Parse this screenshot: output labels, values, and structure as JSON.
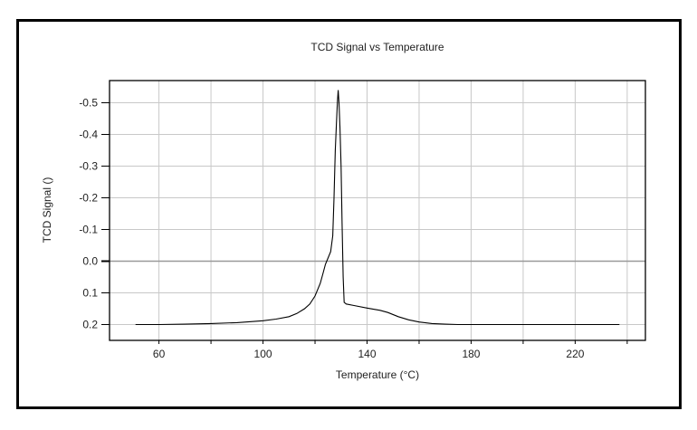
{
  "chart_data": {
    "type": "line",
    "title": "TCD Signal vs Temperature",
    "xlabel": "Temperature (°C)",
    "ylabel": "TCD Signal ()",
    "xlim": [
      41,
      247
    ],
    "ylim": [
      0.25,
      -0.57
    ],
    "y_inverted": true,
    "grid": true,
    "x_ticks": [
      60,
      100,
      140,
      180,
      220
    ],
    "x_tick_labels": [
      "60",
      "100",
      "140",
      "180",
      "220"
    ],
    "x_grid": [
      60,
      80,
      100,
      120,
      140,
      160,
      180,
      200,
      220,
      240
    ],
    "y_ticks": [
      -0.5,
      -0.4,
      -0.3,
      -0.2,
      -0.1,
      0.0,
      0.1,
      0.2
    ],
    "y_tick_labels": [
      "-0.5",
      "-0.4",
      "-0.3",
      "-0.2",
      "-0.1",
      "0.0",
      "0.1",
      "0.2"
    ],
    "series": [
      {
        "name": "TCD Signal",
        "color": "#000000",
        "x": [
          51,
          60,
          70,
          80,
          90,
          100,
          105,
          110,
          113,
          116,
          118,
          120,
          122,
          123,
          124,
          125,
          126,
          126.8,
          127.3,
          127.8,
          128.2,
          128.6,
          128.9,
          129.2,
          129.6,
          130,
          130.4,
          130.8,
          131.2,
          132,
          135,
          140,
          145,
          148,
          152,
          156,
          160,
          165,
          170,
          175,
          180,
          190,
          200,
          210,
          220,
          230,
          237
        ],
        "y": [
          0.2,
          0.2,
          0.199,
          0.197,
          0.194,
          0.188,
          0.183,
          0.175,
          0.165,
          0.15,
          0.135,
          0.11,
          0.07,
          0.04,
          0.01,
          -0.01,
          -0.03,
          -0.08,
          -0.2,
          -0.35,
          -0.43,
          -0.5,
          -0.54,
          -0.5,
          -0.42,
          -0.3,
          -0.12,
          0.05,
          0.13,
          0.135,
          0.14,
          0.148,
          0.155,
          0.162,
          0.175,
          0.185,
          0.192,
          0.197,
          0.199,
          0.2,
          0.2,
          0.2,
          0.2,
          0.2,
          0.2,
          0.2,
          0.2
        ]
      }
    ]
  }
}
